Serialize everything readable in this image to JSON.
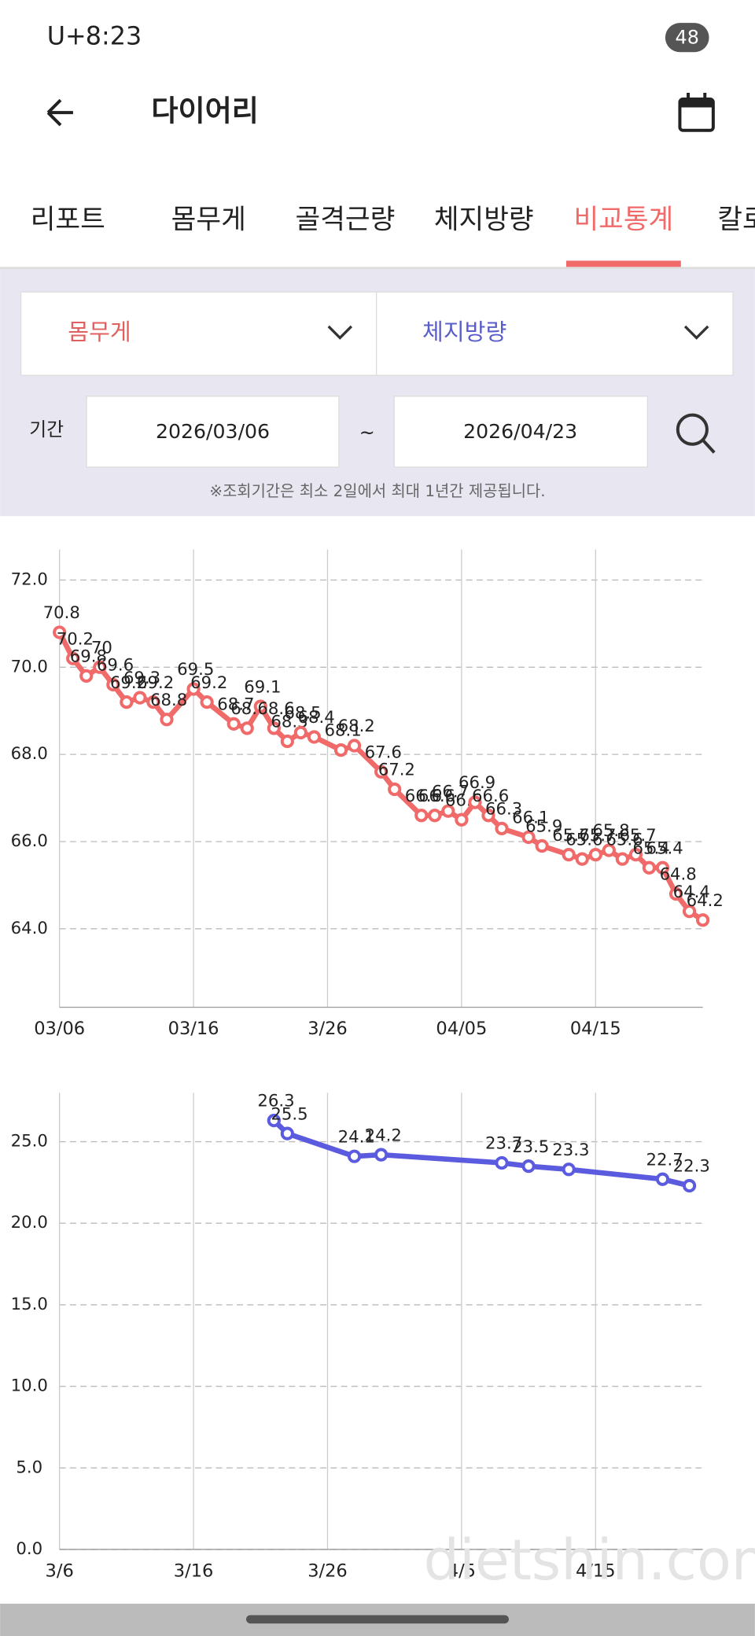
{
  "status_bar": {
    "carrier": "U+",
    "time": "8:23",
    "battery": "48"
  },
  "header": {
    "title": "다이어리"
  },
  "tabs": {
    "items": [
      "리포트",
      "몸무게",
      "골격근량",
      "체지방량",
      "비교통계",
      "칼로"
    ],
    "active": 4
  },
  "filters": {
    "metric_1": "몸무게",
    "metric_2": "체지방량",
    "period_label": "기간",
    "start_date": "2026/03/06",
    "separator": "~",
    "end_date": "2026/04/23",
    "note": "※조회기간은 최소 2일에서 최대 1년간 제공됩니다."
  },
  "chart_data": [
    {
      "type": "line",
      "color": "#f06a6a",
      "x": [
        "03/06",
        "03/07",
        "03/08",
        "03/09",
        "03/10",
        "03/11",
        "03/12",
        "03/13",
        "03/14",
        "03/16",
        "03/17",
        "03/19",
        "03/20",
        "03/21",
        "03/22",
        "03/23",
        "03/24",
        "03/25",
        "03/27",
        "03/28",
        "03/30",
        "03/31",
        "04/02",
        "04/03",
        "04/04",
        "04/05",
        "04/06",
        "04/07",
        "04/08",
        "04/10",
        "04/11",
        "04/13",
        "04/14",
        "04/15",
        "04/16",
        "04/17",
        "04/18",
        "04/19",
        "04/20",
        "04/21",
        "04/22",
        "04/23"
      ],
      "values": [
        70.8,
        70.2,
        69.8,
        70.0,
        69.6,
        69.2,
        69.3,
        69.2,
        68.8,
        69.5,
        69.2,
        68.7,
        68.6,
        69.1,
        68.6,
        68.3,
        68.5,
        68.4,
        68.1,
        68.2,
        67.6,
        67.2,
        66.6,
        66.6,
        66.7,
        66.5,
        66.9,
        66.6,
        66.3,
        66.1,
        65.9,
        65.7,
        65.6,
        65.7,
        65.8,
        65.6,
        65.7,
        65.4,
        65.4,
        64.8,
        64.4,
        64.2
      ],
      "xlim": [
        "03/06",
        "04/23"
      ],
      "xticks": [
        "03/06",
        "03/16",
        "3/26",
        "04/05",
        "04/15"
      ],
      "ylim": [
        62.2,
        72.7
      ],
      "yticks": [
        {
          "value": 64,
          "label": "64.0"
        },
        {
          "value": 66,
          "label": "66.0"
        },
        {
          "value": 68,
          "label": "68.0"
        },
        {
          "value": 70,
          "label": "70.0"
        },
        {
          "value": 72,
          "label": "72.0"
        }
      ],
      "grid": true
    },
    {
      "type": "line",
      "color": "#5b5be0",
      "x": [
        "3/22",
        "3/23",
        "3/28",
        "3/30",
        "4/8",
        "4/10",
        "4/13",
        "4/20",
        "4/22"
      ],
      "values": [
        26.3,
        25.5,
        24.1,
        24.2,
        23.7,
        23.5,
        23.3,
        22.7,
        22.3
      ],
      "xlim": [
        "3/6",
        "4/23"
      ],
      "xticks": [
        "3/6",
        "3/16",
        "3/26",
        "4/5",
        "4/15"
      ],
      "ylim": [
        0,
        28
      ],
      "yticks": [
        {
          "value": 0,
          "label": "0.0"
        },
        {
          "value": 5,
          "label": "5.0"
        },
        {
          "value": 10,
          "label": "10.0"
        },
        {
          "value": 15,
          "label": "15.0"
        },
        {
          "value": 20,
          "label": "20.0"
        },
        {
          "value": 25,
          "label": "25.0"
        }
      ],
      "grid": true
    }
  ],
  "watermark": "dietshin.com"
}
